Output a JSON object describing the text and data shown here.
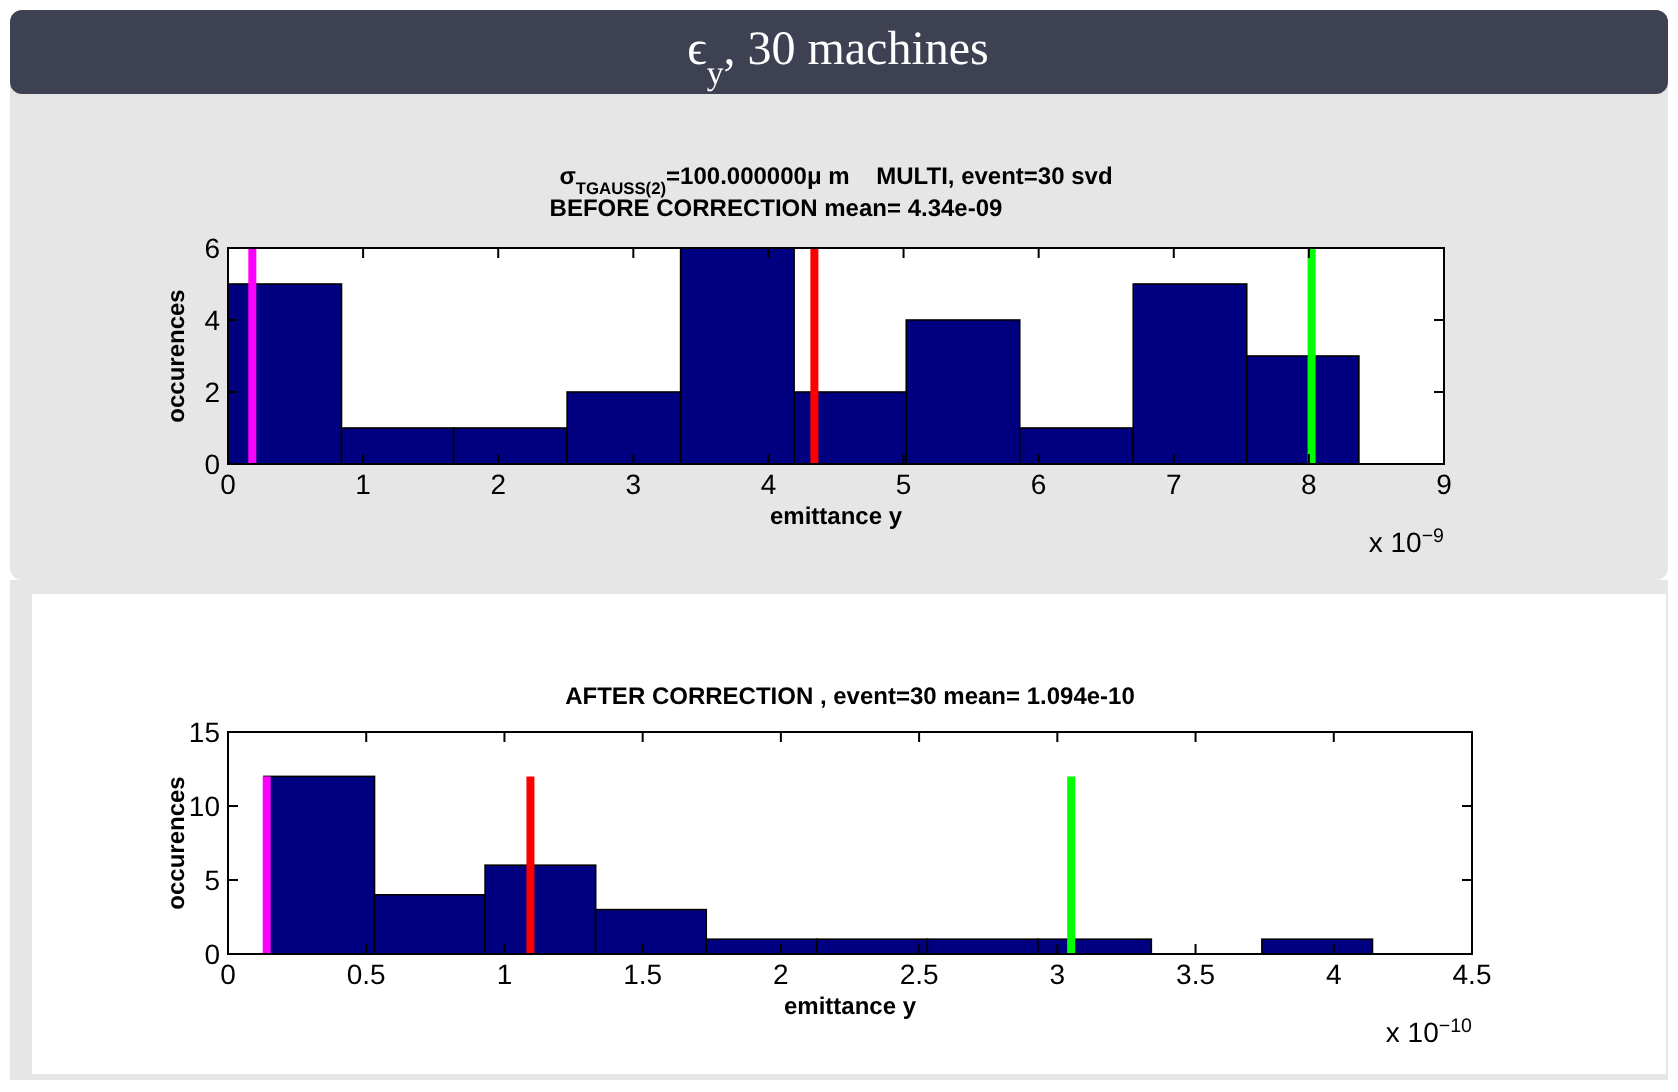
{
  "chart_data": [
    {
      "type": "histogram",
      "title": "σ$_{TGAUSS(2)}$=100.000000μ m    MULTI, event=30 svd",
      "subtitle": "BEFORE CORRECTION mean= 4.34e-09",
      "xlabel": "emittance y",
      "ylabel": "occurences",
      "bins": [
        0,
        0.84,
        1.67,
        2.51,
        3.35,
        4.19,
        5.02,
        5.86,
        6.7,
        7.54,
        8.37
      ],
      "values": [
        5,
        1,
        1,
        2,
        6,
        2,
        4,
        1,
        5,
        3
      ],
      "color": "#000080",
      "xlim": [
        0,
        9
      ],
      "xticks": [
        0,
        1,
        2,
        3,
        4,
        5,
        6,
        7,
        8,
        9
      ],
      "ylim": [
        0,
        6
      ],
      "yticks": [
        0,
        2,
        4,
        6
      ],
      "grid": false,
      "ref_lines": [
        {
          "axis": "x",
          "value": 0.18,
          "color": "#ff00ff"
        },
        {
          "axis": "x",
          "value": 4.34,
          "color": "#ff0000"
        },
        {
          "axis": "x",
          "value": 8.02,
          "color": "#00ff00"
        }
      ],
      "annotations": [
        "ϵ$_{y}$, 30 machines",
        "x 10$^{−9}$"
      ]
    },
    {
      "type": "histogram",
      "title": "AFTER CORRECTION , event=30 mean= 1.094e-10",
      "xlabel": "emittance y",
      "ylabel": "occurences",
      "bins": [
        0.13,
        0.53,
        0.93,
        1.33,
        1.73,
        2.13,
        2.53,
        2.93,
        3.34,
        3.74,
        4.14
      ],
      "values": [
        12,
        4,
        6,
        3,
        1,
        1,
        1,
        1,
        0,
        1
      ],
      "color": "#000080",
      "xlim": [
        0,
        4.5
      ],
      "xticks": [
        0,
        0.5,
        1,
        1.5,
        2,
        2.5,
        3,
        3.5,
        4,
        4.5
      ],
      "ylim": [
        0,
        15
      ],
      "yticks": [
        0,
        5,
        10,
        15
      ],
      "grid": false,
      "ref_lines": [
        {
          "axis": "x",
          "value": 0.14,
          "color": "#ff00ff"
        },
        {
          "axis": "x",
          "value": 1.094,
          "color": "#ff0000"
        },
        {
          "axis": "x",
          "value": 3.05,
          "color": "#00ff00"
        }
      ],
      "annotations": [
        "x 10$^{−10}$"
      ]
    }
  ]
}
